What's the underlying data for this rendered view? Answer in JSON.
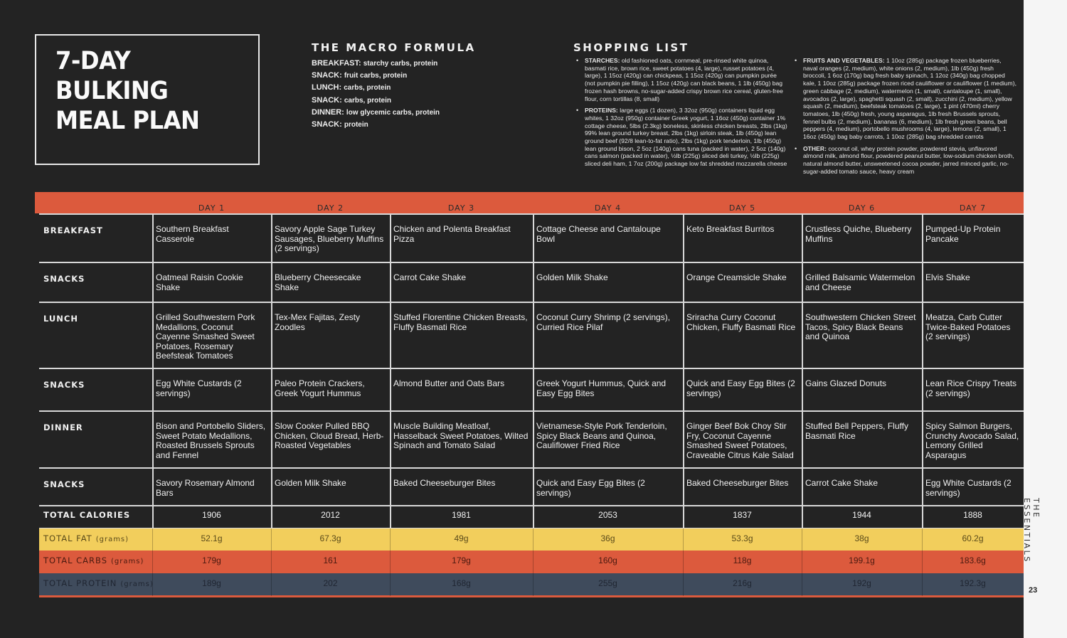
{
  "title": {
    "lines": [
      "7-DAY",
      "BULKING",
      "MEAL PLAN"
    ]
  },
  "macro": {
    "heading": "THE MACRO FORMULA",
    "items": [
      {
        "k": "BREAKFAST:",
        "v": "starchy carbs, protein"
      },
      {
        "k": "SNACK:",
        "v": "fruit carbs, protein"
      },
      {
        "k": "LUNCH:",
        "v": "carbs, protein"
      },
      {
        "k": "SNACK:",
        "v": "carbs, protein"
      },
      {
        "k": "DINNER:",
        "v": "low glycemic carbs, protein"
      },
      {
        "k": "SNACK:",
        "v": "protein"
      }
    ]
  },
  "shopping": {
    "heading": "SHOPPING LIST",
    "left": [
      {
        "k": "STARCHES:",
        "v": "old fashioned oats, cornmeal, pre-rinsed white quinoa, basmati rice, brown rice, sweet potatoes (4, large), russet potatoes (4, large), 1 15oz (420g) can chickpeas, 1 15oz (420g) can pumpkin purée (not pumpkin pie filling), 1 15oz (420g) can black beans, 1 1lb (450g) bag frozen hash browns, no-sugar-added crispy brown rice cereal, gluten-free flour, corn tortillas (8, small)"
      },
      {
        "k": "PROTEINS:",
        "v": "large eggs (1 dozen), 3 32oz (950g) containers liquid egg whites, 1 32oz (950g) container Greek yogurt, 1 16oz (450g) container 1% cottage cheese, 5lbs (2.3kg) boneless, skinless chicken breasts, 2lbs (1kg) 99% lean ground turkey breast, 2lbs (1kg) sirloin steak, 1lb (450g) lean ground beef (92/8 lean-to-fat ratio), 2lbs (1kg) pork tenderloin, 1lb (450g) lean ground bison, 2 5oz (140g) cans tuna (packed in water), 2 5oz (140g) cans salmon (packed in water), ½lb (225g) sliced deli turkey, ½lb (225g) sliced deli ham, 1 7oz (200g) package low fat shredded mozzarella cheese"
      }
    ],
    "right": [
      {
        "k": "FRUITS AND VEGETABLES:",
        "v": "1 10oz (285g) package frozen blueberries, naval oranges (2, medium), white onions (2, medium), 1lb (450g) fresh broccoli, 1 6oz (170g) bag fresh baby spinach, 1 12oz (340g) bag chopped kale, 1 10oz (285g) package frozen riced cauliflower or cauliflower (1 medium), green cabbage (2, medium), watermelon (1, small), cantaloupe (1, small), avocados (2, large), spaghetti squash (2, small), zucchini (2, medium), yellow squash (2, medium), beefsteak tomatoes (2, large), 1 pint (470ml) cherry tomatoes, 1lb (450g) fresh, young asparagus, 1lb fresh Brussels sprouts, fennel bulbs (2, medium), bananas (6, medium), 1lb fresh green beans, bell peppers (4, medium), portobello mushrooms (4, large), lemons (2, small), 1 16oz (450g) bag baby carrots, 1 10oz (285g) bag shredded carrots"
      },
      {
        "k": "OTHER:",
        "v": "coconut oil, whey protein powder, powdered stevia, unflavored almond milk, almond flour, powdered peanut butter, low-sodium chicken broth, natural almond butter, unsweetened cocoa powder, jarred minced garlic, no-sugar-added tomato sauce, heavy cream"
      }
    ]
  },
  "days": [
    "DAY 1",
    "DAY 2",
    "DAY 3",
    "DAY 4",
    "DAY 5",
    "DAY 6",
    "DAY 7"
  ],
  "meals": [
    {
      "label": "BREAKFAST",
      "cells": [
        "Southern Breakfast Casserole",
        "Savory Apple Sage Turkey Sausages, Blueberry Muffins (2 servings)",
        "Chicken and Polenta Breakfast Pizza",
        "Cottage Cheese and Cantaloupe Bowl",
        "Keto Breakfast Burritos",
        "Crustless Quiche, Blueberry Muffins",
        "Pumped-Up Protein Pancake"
      ]
    },
    {
      "label": "SNACKS",
      "cells": [
        "Oatmeal Raisin Cookie Shake",
        "Blueberry Cheesecake Shake",
        "Carrot Cake Shake",
        "Golden Milk Shake",
        "Orange Creamsicle Shake",
        "Grilled Balsamic Watermelon and Cheese",
        "Elvis Shake"
      ]
    },
    {
      "label": "LUNCH",
      "cells": [
        "Grilled Southwestern Pork Medallions, Coconut Cayenne Smashed Sweet Potatoes, Rosemary Beefsteak Tomatoes",
        "Tex-Mex Fajitas, Zesty Zoodles",
        "Stuffed Florentine Chicken Breasts, Fluffy Basmati Rice",
        "Coconut Curry Shrimp (2 servings), Curried Rice Pilaf",
        "Sriracha Curry Coconut Chicken, Fluffy Basmati Rice",
        "Southwestern Chicken Street Tacos, Spicy Black Beans and Quinoa",
        "Meatza, Carb Cutter Twice-Baked Potatoes (2 servings)"
      ]
    },
    {
      "label": "SNACKS",
      "cells": [
        "Egg White Custards (2 servings)",
        "Paleo Protein Crackers, Greek Yogurt Hummus",
        "Almond Butter and Oats Bars",
        "Greek Yogurt Hummus, Quick and Easy Egg Bites",
        "Quick and Easy Egg Bites (2 servings)",
        "Gains Glazed Donuts",
        "Lean Rice Crispy Treats (2 servings)"
      ]
    },
    {
      "label": "DINNER",
      "cells": [
        "Bison and Portobello Sliders, Sweet Potato Medallions, Roasted Brussels Sprouts and Fennel",
        "Slow Cooker Pulled BBQ Chicken, Cloud Bread, Herb-Roasted Vegetables",
        "Muscle Building Meatloaf, Hasselback Sweet Potatoes, Wilted Spinach and Tomato Salad",
        "Vietnamese-Style Pork Tenderloin, Spicy Black Beans and Quinoa, Cauliflower Fried Rice",
        "Ginger Beef Bok Choy Stir Fry, Coconut Cayenne Smashed Sweet Potatoes, Craveable Citrus Kale Salad",
        "Stuffed Bell Peppers, Fluffy Basmati Rice",
        "Spicy Salmon Burgers, Crunchy Avocado Salad, Lemony Grilled Asparagus"
      ]
    },
    {
      "label": "SNACKS",
      "cells": [
        "Savory Rosemary Almond Bars",
        "Golden Milk Shake",
        "Baked Cheeseburger Bites",
        "Quick and Easy Egg Bites (2 servings)",
        "Baked Cheeseburger Bites",
        "Carrot Cake Shake",
        "Egg White Custards (2 servings)"
      ]
    }
  ],
  "totals": [
    {
      "label": "TOTAL CALORIES",
      "unit": "",
      "values": [
        "1906",
        "2012",
        "1981",
        "2053",
        "1837",
        "1944",
        "1888"
      ],
      "bg": "#232323",
      "fg": "#f2f2f2"
    },
    {
      "label": "TOTAL FAT",
      "unit": "(grams)",
      "values": [
        "52.1g",
        "67.3g",
        "49g",
        "36g",
        "53.3g",
        "38g",
        "60.2g"
      ],
      "bg": "#f2ce5c",
      "fg": "#5a4a1a"
    },
    {
      "label": "TOTAL CARBS",
      "unit": "(grams)",
      "values": [
        "179g",
        "161",
        "179g",
        "160g",
        "118g",
        "199.1g",
        "183.6g"
      ],
      "bg": "#dc5a3d",
      "fg": "#4a1a10"
    },
    {
      "label": "TOTAL PROTEIN",
      "unit": "(grams)",
      "values": [
        "189g",
        "202",
        "168g",
        "255g",
        "216g",
        "192g",
        "192.3g"
      ],
      "bg": "#3f4b5c",
      "fg": "#202632"
    }
  ],
  "sidebar": {
    "title": "THE ESSENTIALS",
    "page": "23"
  },
  "colors": {
    "accent_orange": "#dc5a3d",
    "accent_yellow": "#f2ce5c",
    "accent_slate": "#3f4b5c",
    "background": "#232323"
  }
}
